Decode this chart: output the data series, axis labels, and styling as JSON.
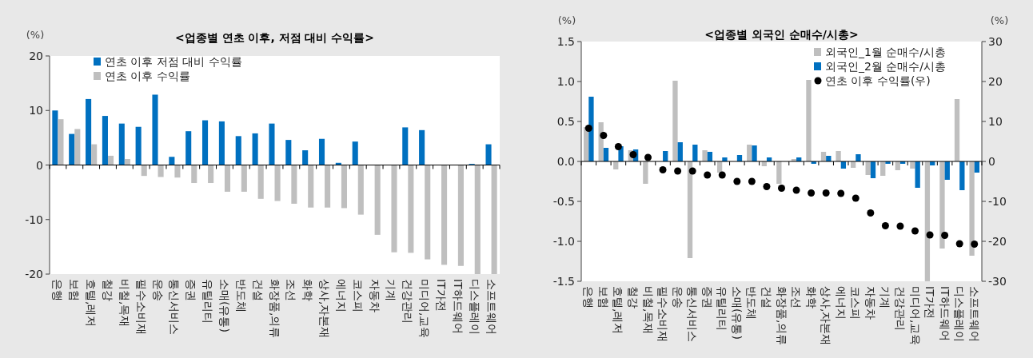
{
  "chart_data": [
    {
      "type": "bar",
      "title": "<업종별 연초 이후, 저점 대비 수익률>",
      "ylabel": "(%)",
      "legend": "top left",
      "categories": [
        "은행",
        "보험",
        "호텔,레저",
        "철강",
        "비철,목재",
        "필수소비재",
        "운송",
        "통신서비스",
        "증권",
        "유틸리티",
        "소매(유통)",
        "반도체",
        "건설",
        "화장품,의류",
        "조선",
        "화학",
        "상사,자본재",
        "에너지",
        "코스피",
        "자동차",
        "기계",
        "건강관리",
        "미디어,교육",
        "IT가전",
        "IT하드웨어",
        "디스플레이",
        "소프트웨어"
      ],
      "series": [
        {
          "name": "연초 이후 저점 대비 수익률",
          "color": "#0070c0",
          "values": [
            10.0,
            5.7,
            12.1,
            9.0,
            7.6,
            7.0,
            12.9,
            1.5,
            6.2,
            8.2,
            8.0,
            5.3,
            5.8,
            7.6,
            4.6,
            2.7,
            4.8,
            0.4,
            4.3,
            0,
            0,
            6.9,
            6.4,
            0,
            0,
            0.2,
            3.8
          ]
        },
        {
          "name": "연초 이후 수익률",
          "color": "#bfbfbf",
          "values": [
            8.4,
            6.6,
            3.8,
            1.7,
            1.1,
            -2.0,
            -2.2,
            -2.3,
            -3.3,
            -3.3,
            -4.9,
            -4.9,
            -6.2,
            -6.6,
            -7.1,
            -7.8,
            -7.8,
            -7.9,
            -9.1,
            -12.8,
            -16.0,
            -16.1,
            -17.3,
            -18.3,
            -18.5,
            -20,
            -20
          ]
        }
      ],
      "ylim": [
        -20,
        20
      ],
      "yticks": [
        -20,
        -10,
        0,
        10,
        20
      ]
    },
    {
      "type": "bar",
      "title": "<업종별 외국인 순매수/시총>",
      "ylabel": "(%)",
      "y2label": "(%)",
      "legend": "top right",
      "categories": [
        "은행",
        "보험",
        "호텔,레저",
        "철강",
        "비철,목재",
        "필수소비재",
        "운송",
        "통신서비스",
        "증권",
        "유틸리티",
        "소매(유통)",
        "반도체",
        "건설",
        "화장품,의류",
        "조선",
        "화학",
        "상사,자본재",
        "에너지",
        "코스피",
        "자동차",
        "기계",
        "건강관리",
        "미디어,교육",
        "IT가전",
        "IT하드웨어",
        "디스플레이",
        "소프트웨어"
      ],
      "series": [
        {
          "name": "외국인_1월 순매수/시총",
          "color": "#bfbfbf",
          "values": [
            0.43,
            0.49,
            -0.1,
            0.14,
            -0.28,
            null,
            1.01,
            -1.21,
            0.14,
            -0.14,
            null,
            0.21,
            -0.06,
            -0.28,
            0.03,
            1.02,
            0.12,
            0.13,
            -0.08,
            -0.17,
            -0.18,
            -0.11,
            -0.09,
            -1.5,
            -1.09,
            0.78,
            -1.18
          ]
        },
        {
          "name": "외국인_2월 순매수/시총",
          "color": "#0070c0",
          "values": [
            0.81,
            0.17,
            0.19,
            0.15,
            null,
            0.13,
            0.24,
            0.21,
            0.12,
            0.05,
            0.08,
            0.2,
            0.05,
            0.0,
            0.05,
            -0.03,
            0.07,
            -0.09,
            0.09,
            -0.21,
            -0.03,
            -0.03,
            -0.33,
            -0.05,
            -0.23,
            -0.36,
            -0.14
          ]
        },
        {
          "name": "연초 이후 수익률(우)",
          "type": "scatter",
          "axis": "y2",
          "marker": "circle",
          "color": "#000000",
          "values": [
            8.3,
            6.5,
            3.7,
            1.7,
            1.0,
            -2.1,
            -2.4,
            -2.4,
            -3.4,
            -3.4,
            -5.0,
            -5.0,
            -6.3,
            -6.7,
            -7.2,
            -7.9,
            -7.9,
            -8.0,
            -9.2,
            -12.9,
            -16.1,
            -16.2,
            -17.4,
            -18.4,
            -18.5,
            -20.6,
            -20.7
          ]
        }
      ],
      "ylim": [
        -1.5,
        1.5
      ],
      "yticks": [
        -1.5,
        {
          "value": -1,
          "label": "-1.0"
        },
        -0.5,
        {
          "value": 0,
          "label": "0.0"
        },
        0.5,
        {
          "value": 1,
          "label": "1.0"
        },
        1.5
      ],
      "y2lim": [
        -30,
        30
      ],
      "y2ticks": [
        -30,
        -20,
        -10,
        0,
        10,
        20,
        30
      ]
    }
  ]
}
